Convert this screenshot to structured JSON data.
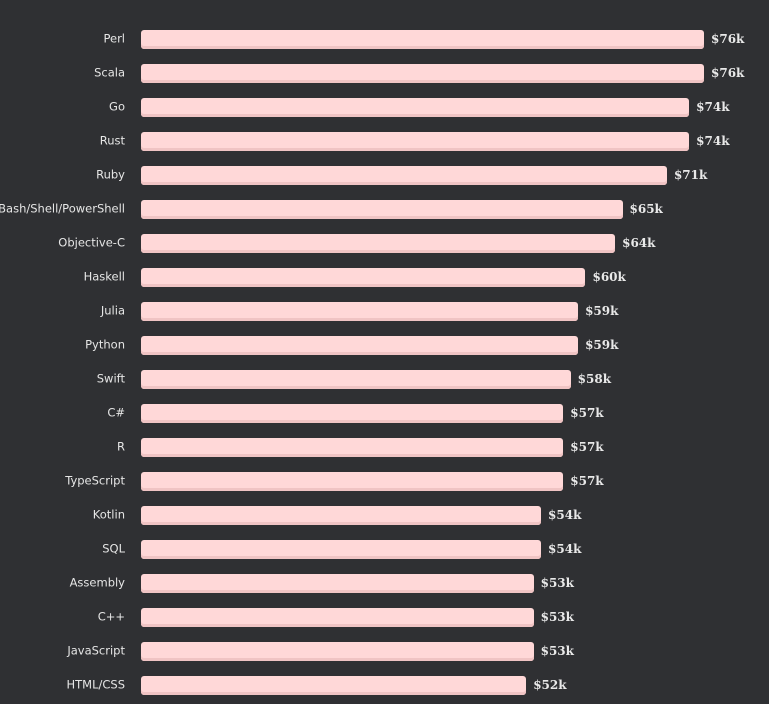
{
  "chart_data": {
    "type": "bar",
    "orientation": "horizontal",
    "categories": [
      "Perl",
      "Scala",
      "Go",
      "Rust",
      "Ruby",
      "Bash/Shell/PowerShell",
      "Objective-C",
      "Haskell",
      "Julia",
      "Python",
      "Swift",
      "C#",
      "R",
      "TypeScript",
      "Kotlin",
      "SQL",
      "Assembly",
      "C++",
      "JavaScript",
      "HTML/CSS"
    ],
    "values": [
      76,
      76,
      74,
      74,
      71,
      65,
      64,
      60,
      59,
      59,
      58,
      57,
      57,
      57,
      54,
      54,
      53,
      53,
      53,
      52
    ],
    "value_labels": [
      "$76k",
      "$76k",
      "$74k",
      "$74k",
      "$71k",
      "$65k",
      "$64k",
      "$60k",
      "$59k",
      "$59k",
      "$58k",
      "$57k",
      "$57k",
      "$57k",
      "$54k",
      "$54k",
      "$53k",
      "$53k",
      "$53k",
      "$52k"
    ],
    "xlim": [
      0,
      76
    ],
    "grid": false,
    "legend": "none",
    "bar_color": "#ffd8d8",
    "background_color": "#2f3033"
  }
}
